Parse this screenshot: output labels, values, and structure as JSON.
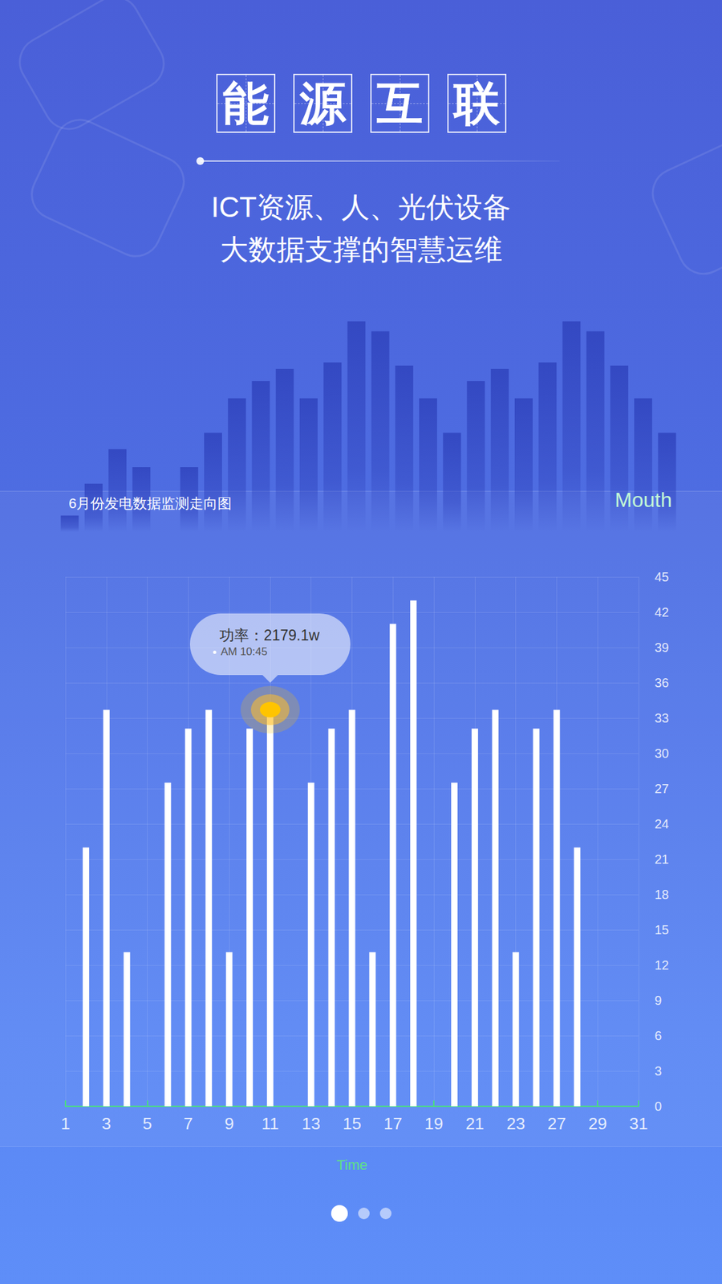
{
  "header": {
    "title": "能源互联",
    "subtitle": [
      "ICT资源、人、光伏设备",
      "大数据支撑的智慧运维"
    ]
  },
  "chart_data": [
    {
      "type": "bar",
      "title": "6月份发电数据监测走向图",
      "ylabel": "Mouth",
      "xlabel": "Time",
      "categories": [
        "1",
        null,
        "3",
        null,
        "5",
        null,
        "7",
        null,
        "9",
        null,
        "11",
        null,
        "13",
        null,
        "15",
        null,
        "17",
        null,
        "19",
        null,
        "21",
        null,
        "23",
        null,
        "27",
        null,
        "29",
        null,
        "31"
      ],
      "values": [
        null,
        22,
        33.7,
        13.1,
        null,
        27.5,
        32.1,
        33.7,
        13.1,
        32.1,
        33.7,
        null,
        27.5,
        32.1,
        33.7,
        13.1,
        41,
        43,
        null,
        27.5,
        32.1,
        33.7,
        13.1,
        32.1,
        33.7,
        22,
        null,
        null,
        null
      ],
      "color": "#ffffff",
      "ylim": [
        0,
        45
      ],
      "yticks": [
        0,
        3,
        6,
        9,
        12,
        15,
        18,
        21,
        24,
        27,
        30,
        33,
        36,
        39,
        42,
        45
      ],
      "grid": true,
      "annotations": [
        {
          "category": "11",
          "text": "功率：2179.1w",
          "time": "AM 10:45"
        }
      ]
    },
    {
      "type": "bar",
      "categories": [
        null,
        null,
        null,
        null,
        null,
        null,
        null,
        null,
        null,
        null,
        null,
        null,
        null,
        null,
        null,
        null,
        null,
        null,
        null,
        null,
        null,
        null,
        null,
        null,
        null,
        null
      ],
      "values": [
        20,
        59,
        101,
        79,
        null,
        79,
        121,
        163,
        184,
        199,
        163,
        207,
        257,
        245,
        203,
        163,
        121,
        184,
        199,
        163,
        207,
        257,
        245,
        203,
        163,
        121
      ],
      "color": "#2f43bd",
      "ylim": [
        0,
        260
      ],
      "tick_labels": false
    }
  ]
}
